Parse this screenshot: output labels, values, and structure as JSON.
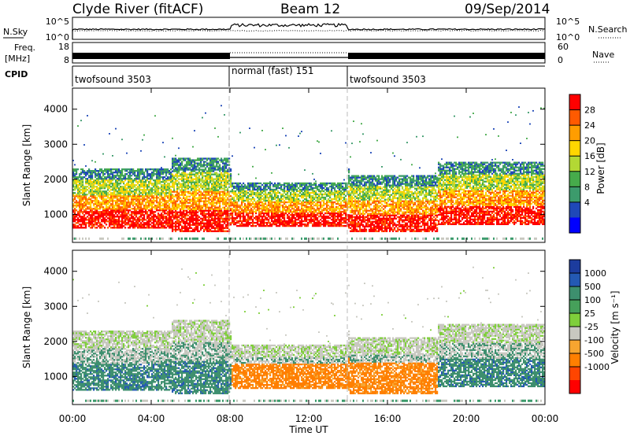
{
  "header": {
    "title": "Clyde River (fitACF)",
    "beam": "Beam 12",
    "date": "09/Sep/2014"
  },
  "nsky": {
    "label": "N.Sky",
    "search_label": "N.Search",
    "left_ticks": [
      "10^5",
      "10^0"
    ],
    "right_ticks": [
      "10^5",
      "10^0"
    ]
  },
  "freq": {
    "label_line1": "Freq.",
    "label_line2": "[MHz]",
    "nave_label": "Nave",
    "left_ticks": [
      "18",
      "8"
    ],
    "right_ticks": [
      "60",
      "0"
    ]
  },
  "cpid": {
    "label": "CPID",
    "segments": [
      {
        "name": "twofsound 3503",
        "start_hour": 0,
        "end_hour": 8
      },
      {
        "name": "normal (fast) 151",
        "start_hour": 8,
        "end_hour": 14
      },
      {
        "name": "twofsound 3503",
        "start_hour": 14,
        "end_hour": 24
      }
    ]
  },
  "x_axis": {
    "label": "Time UT",
    "ticks": [
      "00:00",
      "04:00",
      "08:00",
      "12:00",
      "16:00",
      "20:00",
      "00:00"
    ]
  },
  "chart_data": [
    {
      "type": "heatmap",
      "quantity": "Power",
      "ylabel": "Slant Range [km]",
      "yticks": [
        1000,
        2000,
        3000,
        4000
      ],
      "ylim": [
        200,
        4600
      ],
      "xlim_hours": [
        0,
        24
      ],
      "colorbar_label": "Power [dB]",
      "colorbar_ticks": [
        "28",
        "24",
        "20",
        "16",
        "12",
        "8",
        "4"
      ],
      "colorbar_colors": [
        "#ff0000",
        "#ff5a00",
        "#ff9d00",
        "#ffd600",
        "#b3d834",
        "#46ab4b",
        "#3c9b6c",
        "#1f48b8",
        "#0000ff"
      ]
    },
    {
      "type": "heatmap",
      "quantity": "Velocity",
      "ylabel": "Slant Range [km]",
      "yticks": [
        1000,
        2000,
        3000,
        4000
      ],
      "ylim": [
        200,
        4600
      ],
      "xlim_hours": [
        0,
        24
      ],
      "colorbar_label": "Velocity [m s⁻¹]",
      "colorbar_ticks": [
        "1000",
        "500",
        "100",
        "25",
        "-25",
        "-100",
        "-500",
        "-1000"
      ],
      "colorbar_colors": [
        "#1c3c9e",
        "#2459b3",
        "#3d8f6e",
        "#46a05a",
        "#7fcf3b",
        "#c8c8c0",
        "#f7a530",
        "#ff7f00",
        "#ff4500",
        "#ff0000"
      ]
    }
  ]
}
